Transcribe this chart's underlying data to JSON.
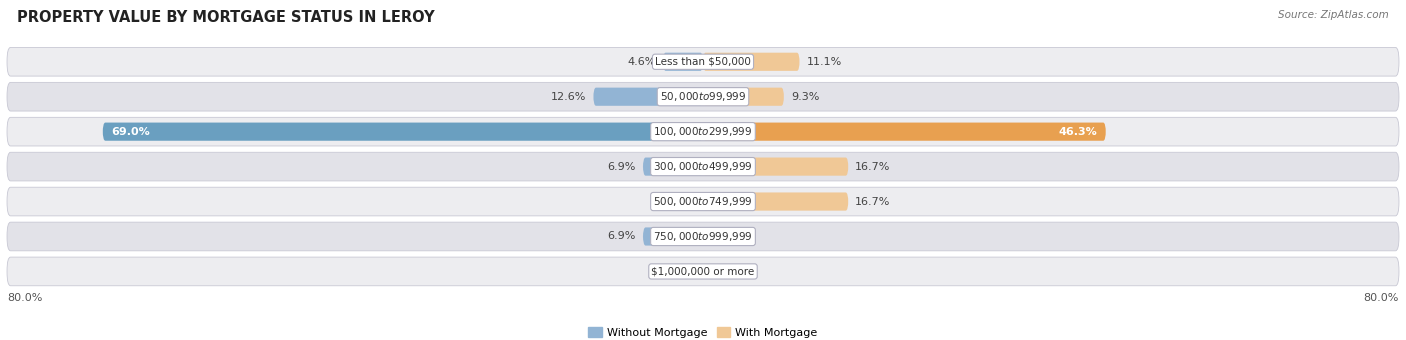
{
  "title": "PROPERTY VALUE BY MORTGAGE STATUS IN LEROY",
  "source": "Source: ZipAtlas.com",
  "categories": [
    "Less than $50,000",
    "$50,000 to $99,999",
    "$100,000 to $299,999",
    "$300,000 to $499,999",
    "$500,000 to $749,999",
    "$750,000 to $999,999",
    "$1,000,000 or more"
  ],
  "without_mortgage": [
    4.6,
    12.6,
    69.0,
    6.9,
    0.0,
    6.9,
    0.0
  ],
  "with_mortgage": [
    11.1,
    9.3,
    46.3,
    16.7,
    16.7,
    0.0,
    0.0
  ],
  "xlim": 80.0,
  "color_without": "#92b4d4",
  "color_without_large": "#6a9fc0",
  "color_with": "#f0c896",
  "color_with_large": "#e8a050",
  "row_bg_odd": "#ededf0",
  "row_bg_even": "#e2e2e8",
  "row_border_color": "#c8c8d4",
  "title_fontsize": 10.5,
  "source_fontsize": 7.5,
  "bar_label_fontsize": 8,
  "cat_label_fontsize": 7.5,
  "axis_label_fontsize": 8,
  "legend_fontsize": 8
}
